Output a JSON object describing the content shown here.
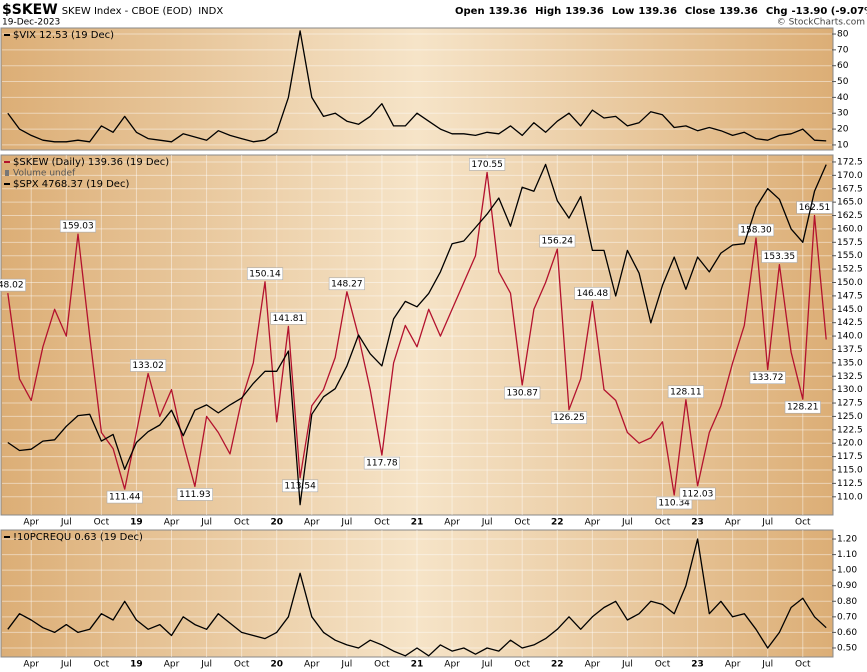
{
  "header": {
    "symbol": "$SKEW",
    "name": "SKEW Index - CBOE (EOD)",
    "exchange": "INDX",
    "date": "19-Dec-2023",
    "quote": [
      {
        "label": "Open",
        "value": 139.36
      },
      {
        "label": "High",
        "value": 139.36
      },
      {
        "label": "Low",
        "value": 139.36
      },
      {
        "label": "Close",
        "value": 139.36
      },
      {
        "label": "Chg",
        "value": "-13.90 (-9.07%)"
      }
    ],
    "credit": "© StockCharts.com"
  },
  "chart_data": [
    {
      "type": "line",
      "grid": true,
      "series": [
        {
          "name": "$VIX 12.53 (19 Dec)",
          "color": "#000000",
          "values": [
            30,
            20,
            16,
            13,
            12,
            12,
            13,
            12,
            22,
            18,
            28,
            18,
            14,
            13,
            12,
            17,
            15,
            13,
            19,
            16,
            14,
            12,
            13,
            18,
            40,
            82,
            40,
            28,
            30,
            25,
            23,
            28,
            36,
            22,
            22,
            30,
            25,
            20,
            17,
            17,
            16,
            18,
            17,
            22,
            16,
            24,
            18,
            25,
            30,
            22,
            32,
            27,
            28,
            22,
            24,
            31,
            29,
            21,
            22,
            19,
            21,
            19,
            16,
            18,
            14,
            13,
            16,
            17,
            20,
            13,
            12.53
          ]
        }
      ],
      "ylim": [
        6.8,
        83.8
      ],
      "yticks": [
        10,
        20,
        30,
        40,
        50,
        60,
        70,
        80
      ]
    },
    {
      "type": "line",
      "grid": true,
      "note": "Volume undef",
      "categories": [
        null,
        null,
        "Apr",
        null,
        null,
        "Jul",
        null,
        null,
        "Oct",
        null,
        null,
        "19",
        null,
        null,
        "Apr",
        null,
        null,
        "Jul",
        null,
        null,
        "Oct",
        null,
        null,
        "20",
        null,
        null,
        "Apr",
        null,
        null,
        "Jul",
        null,
        null,
        "Oct",
        null,
        null,
        "21",
        null,
        null,
        "Apr",
        null,
        null,
        "Jul",
        null,
        null,
        "Oct",
        null,
        null,
        "22",
        null,
        null,
        "Apr",
        null,
        null,
        "Jul",
        null,
        null,
        "Oct",
        null,
        null,
        "23",
        null,
        null,
        "Apr",
        null,
        null,
        "Jul",
        null,
        null,
        "Oct",
        null,
        null
      ],
      "series": [
        {
          "name": "$SKEW (Daily) 139.36 (19 Dec)",
          "color": "#b3122e",
          "values": [
            148.02,
            132,
            128,
            138,
            145,
            140,
            159.03,
            140,
            122,
            119,
            111.44,
            122,
            133.02,
            125,
            130,
            120,
            111.93,
            125,
            122,
            118,
            128,
            135,
            150.14,
            124,
            141.81,
            113.54,
            127,
            130,
            136,
            148.27,
            140,
            130,
            117.78,
            135,
            142,
            138,
            145,
            140,
            145,
            150,
            155,
            170.55,
            152,
            148,
            130.87,
            145,
            150,
            156.24,
            126.25,
            132,
            146.48,
            130,
            128,
            122,
            120,
            121,
            124,
            110.34,
            128.11,
            112.03,
            122,
            127,
            135,
            142,
            158.3,
            133.72,
            153.35,
            137,
            128.21,
            162.51,
            139.36
          ],
          "value_labels": [
            "148.02",
            null,
            null,
            null,
            null,
            null,
            "159.03",
            null,
            null,
            null,
            "111.44",
            null,
            "133.02",
            null,
            null,
            null,
            "111.93",
            null,
            null,
            null,
            null,
            null,
            "150.14",
            null,
            "141.81",
            "113.54",
            null,
            null,
            null,
            "148.27",
            null,
            null,
            "117.78",
            null,
            null,
            null,
            null,
            null,
            null,
            null,
            null,
            "170.55",
            null,
            null,
            "130.87",
            null,
            null,
            "156.24",
            "126.25",
            null,
            "146.48",
            null,
            null,
            null,
            null,
            null,
            null,
            "110.34",
            "128.11",
            "112.03",
            null,
            null,
            null,
            null,
            "158.30",
            "133.72",
            "153.35",
            null,
            "128.21",
            "162.51",
            null
          ]
        },
        {
          "name": "$SPX 4768.37 (19 Dec)",
          "color": "#000000",
          "axis": "y2",
          "values": [
            2700,
            2640,
            2650,
            2710,
            2720,
            2820,
            2900,
            2910,
            2710,
            2760,
            2500,
            2700,
            2780,
            2830,
            2940,
            2750,
            2940,
            2980,
            2920,
            2980,
            3030,
            3140,
            3230,
            3230,
            3380,
            2237,
            2910,
            3040,
            3100,
            3270,
            3500,
            3360,
            3270,
            3620,
            3750,
            3710,
            3810,
            3970,
            4180,
            4200,
            4300,
            4400,
            4520,
            4310,
            4600,
            4570,
            4770,
            4500,
            4370,
            4530,
            4130,
            4130,
            3790,
            4130,
            3960,
            3590,
            3870,
            4080,
            3840,
            4080,
            3970,
            4110,
            4170,
            4180,
            4450,
            4590,
            4510,
            4290,
            4190,
            4570,
            4768.37
          ]
        }
      ],
      "ylim": [
        106.6,
        173.8
      ],
      "yticks": [
        {
          "value": 110,
          "label": "110.0"
        },
        112.5,
        {
          "value": 115,
          "label": "115.0"
        },
        117.5,
        {
          "value": 120,
          "label": "120.0"
        },
        122.5,
        {
          "value": 125,
          "label": "125.0"
        },
        127.5,
        {
          "value": 130,
          "label": "130.0"
        },
        132.5,
        {
          "value": 135,
          "label": "135.0"
        },
        137.5,
        {
          "value": 140,
          "label": "140.0"
        },
        142.5,
        {
          "value": 145,
          "label": "145.0"
        },
        147.5,
        {
          "value": 150,
          "label": "150.0"
        },
        152.5,
        {
          "value": 155,
          "label": "155.0"
        },
        157.5,
        {
          "value": 160,
          "label": "160.0"
        },
        162.5,
        {
          "value": 165,
          "label": "165.0"
        },
        167.5,
        {
          "value": 170,
          "label": "170.0"
        },
        172.5
      ],
      "y2lim": [
        2160,
        4840
      ]
    },
    {
      "type": "line",
      "grid": true,
      "categories": [
        null,
        null,
        "Apr",
        null,
        null,
        "Jul",
        null,
        null,
        "Oct",
        null,
        null,
        "19",
        null,
        null,
        "Apr",
        null,
        null,
        "Jul",
        null,
        null,
        "Oct",
        null,
        null,
        "20",
        null,
        null,
        "Apr",
        null,
        null,
        "Jul",
        null,
        null,
        "Oct",
        null,
        null,
        "21",
        null,
        null,
        "Apr",
        null,
        null,
        "Jul",
        null,
        null,
        "Oct",
        null,
        null,
        "22",
        null,
        null,
        "Apr",
        null,
        null,
        "Jul",
        null,
        null,
        "Oct",
        null,
        null,
        "23",
        null,
        null,
        "Apr",
        null,
        null,
        "Jul",
        null,
        null,
        "Oct",
        null,
        null
      ],
      "series": [
        {
          "name": "!10PCREQU 0.63 (19 Dec)",
          "color": "#000000",
          "values": [
            0.62,
            0.72,
            0.68,
            0.63,
            0.6,
            0.65,
            0.6,
            0.62,
            0.72,
            0.68,
            0.8,
            0.68,
            0.62,
            0.65,
            0.58,
            0.7,
            0.65,
            0.62,
            0.72,
            0.66,
            0.6,
            0.58,
            0.56,
            0.6,
            0.7,
            0.98,
            0.7,
            0.6,
            0.55,
            0.52,
            0.5,
            0.55,
            0.52,
            0.48,
            0.45,
            0.5,
            0.45,
            0.52,
            0.48,
            0.5,
            0.46,
            0.5,
            0.48,
            0.55,
            0.5,
            0.52,
            0.56,
            0.62,
            0.7,
            0.62,
            0.7,
            0.76,
            0.8,
            0.68,
            0.72,
            0.8,
            0.78,
            0.72,
            0.9,
            1.2,
            0.72,
            0.8,
            0.7,
            0.72,
            0.62,
            0.5,
            0.6,
            0.76,
            0.82,
            0.7,
            0.63
          ]
        }
      ],
      "ylim": [
        0.442,
        1.258
      ],
      "yticks": [
        {
          "value": 0.5,
          "label": "0.50"
        },
        {
          "value": 0.6,
          "label": "0.60"
        },
        {
          "value": 0.7,
          "label": "0.70"
        },
        {
          "value": 0.8,
          "label": "0.80"
        },
        {
          "value": 0.9,
          "label": "0.90"
        },
        {
          "value": 1.0,
          "label": "1.00"
        },
        {
          "value": 1.1,
          "label": "1.10"
        },
        {
          "value": 1.2,
          "label": "1.20"
        }
      ]
    }
  ]
}
